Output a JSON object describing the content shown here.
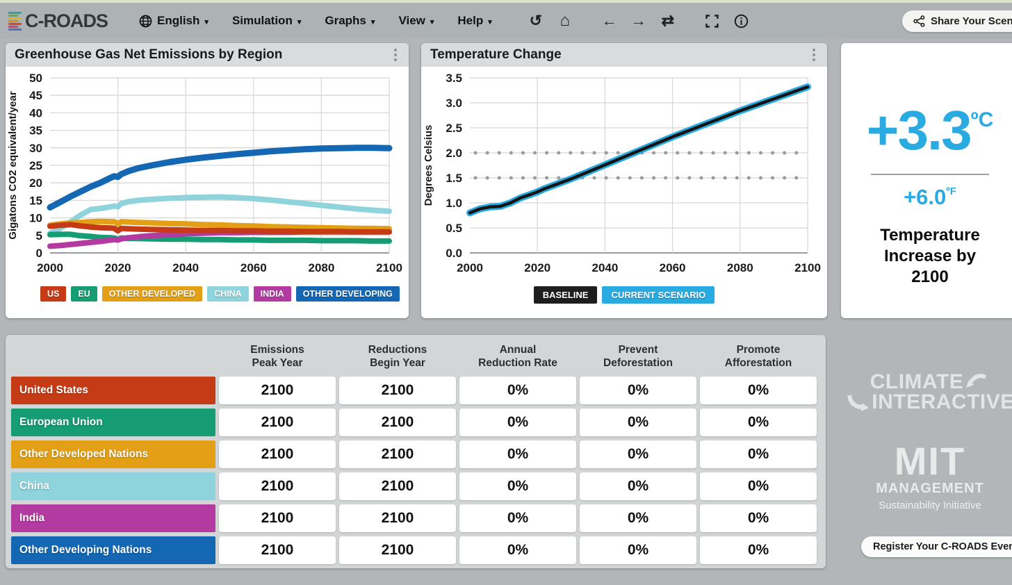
{
  "header": {
    "logo_text": "C-ROADS",
    "logo_stripe_colors": [
      "#2fa39b",
      "#6aab3e",
      "#d1b62a",
      "#e08a1e",
      "#d5472c",
      "#c8447e",
      "#5b6fb5"
    ],
    "menus": [
      {
        "id": "language",
        "label": "English",
        "icon": "globe-icon"
      },
      {
        "id": "simulation",
        "label": "Simulation"
      },
      {
        "id": "graphs",
        "label": "Graphs"
      },
      {
        "id": "view",
        "label": "View"
      },
      {
        "id": "help",
        "label": "Help"
      }
    ],
    "share_button_label": "Share Your Scenario"
  },
  "panels": {
    "emissions_title": "Greenhouse Gas Net Emissions by Region",
    "temperature_title": "Temperature Change"
  },
  "summary": {
    "celsius_value": "+3.3",
    "celsius_unit": "ºC",
    "fahrenheit_value": "+6.0",
    "fahrenheit_unit": "ºF",
    "caption": "Temperature Increase by 2100"
  },
  "branding": {
    "climate_interactive_line1": "CLIMATE",
    "climate_interactive_line2": "INTERACTIVE",
    "mit_line1": "MIT",
    "mit_line2": "MANAGEMENT",
    "mit_line3": "Sustainability Initiative",
    "register_button_label": "Register Your C-ROADS Event"
  },
  "colors": {
    "us": "#c43b16",
    "eu": "#179d74",
    "other_developed": "#e3a017",
    "china": "#8fd3dc",
    "india": "#b23aa0",
    "other_developing": "#1467b2",
    "current_scenario": "#29abe2",
    "baseline": "#141414"
  },
  "table": {
    "columns": [
      {
        "line1": "Emissions",
        "line2": "Peak Year"
      },
      {
        "line1": "Reductions",
        "line2": "Begin Year"
      },
      {
        "line1": "Annual",
        "line2": "Reduction Rate"
      },
      {
        "line1": "Prevent",
        "line2": "Deforestation"
      },
      {
        "line1": "Promote",
        "line2": "Afforestation"
      }
    ],
    "rows": [
      {
        "label": "United States",
        "color": "#c43b16",
        "values": [
          "2100",
          "2100",
          "0%",
          "0%",
          "0%"
        ]
      },
      {
        "label": "European Union",
        "color": "#179d74",
        "values": [
          "2100",
          "2100",
          "0%",
          "0%",
          "0%"
        ]
      },
      {
        "label": "Other Developed Nations",
        "color": "#e3a017",
        "values": [
          "2100",
          "2100",
          "0%",
          "0%",
          "0%"
        ]
      },
      {
        "label": "China",
        "color": "#8fd3dc",
        "values": [
          "2100",
          "2100",
          "0%",
          "0%",
          "0%"
        ]
      },
      {
        "label": "India",
        "color": "#b23aa0",
        "values": [
          "2100",
          "2100",
          "0%",
          "0%",
          "0%"
        ]
      },
      {
        "label": "Other Developing Nations",
        "color": "#1467b2",
        "values": [
          "2100",
          "2100",
          "0%",
          "0%",
          "0%"
        ]
      }
    ]
  },
  "chart_data": [
    {
      "type": "line",
      "title": "Greenhouse Gas Net Emissions by Region",
      "ylabel": "Gigatons CO2 equivalent/year",
      "ylim": [
        0,
        50
      ],
      "ytick": 5,
      "ydecimals": 0,
      "xlim": [
        2000,
        2100
      ],
      "xtick": 20,
      "grid": true,
      "legend_position": "bottom",
      "x": [
        2000,
        2003,
        2006,
        2009,
        2012,
        2015,
        2018,
        2019,
        2020,
        2021,
        2023,
        2026,
        2030,
        2035,
        2040,
        2045,
        2050,
        2055,
        2060,
        2065,
        2070,
        2075,
        2080,
        2085,
        2090,
        2095,
        2100
      ],
      "series": [
        {
          "name": "CHINA",
          "color": "#8fd3dc",
          "lw": 8,
          "values": [
            5.6,
            7.0,
            8.8,
            10.8,
            12.4,
            12.7,
            13.2,
            13.4,
            13.2,
            14.1,
            14.6,
            15.0,
            15.3,
            15.6,
            15.8,
            15.9,
            16.0,
            15.8,
            15.5,
            15.1,
            14.6,
            14.1,
            13.6,
            13.1,
            12.6,
            12.2,
            11.9
          ]
        },
        {
          "name": "EU",
          "color": "#179d74",
          "lw": 8,
          "values": [
            5.2,
            5.3,
            5.3,
            4.9,
            4.7,
            4.4,
            4.3,
            4.2,
            3.8,
            4.2,
            4.1,
            4.1,
            4.0,
            3.9,
            3.9,
            3.8,
            3.8,
            3.7,
            3.7,
            3.6,
            3.6,
            3.6,
            3.5,
            3.5,
            3.5,
            3.4,
            3.4
          ]
        },
        {
          "name": "INDIA",
          "color": "#b23aa0",
          "lw": 8,
          "values": [
            1.9,
            2.1,
            2.4,
            2.7,
            3.0,
            3.3,
            3.7,
            3.8,
            3.7,
            4.0,
            4.3,
            4.6,
            4.9,
            5.2,
            5.5,
            5.6,
            5.8,
            5.8,
            5.9,
            5.9,
            5.9,
            6.0,
            6.0,
            6.0,
            6.0,
            6.0,
            6.0
          ]
        },
        {
          "name": "OTHER DEVELOPED",
          "color": "#e3a017",
          "lw": 8,
          "values": [
            7.9,
            8.3,
            8.6,
            8.7,
            8.9,
            9.0,
            8.9,
            8.9,
            8.3,
            8.9,
            8.8,
            8.7,
            8.6,
            8.4,
            8.3,
            8.1,
            8.0,
            7.8,
            7.7,
            7.5,
            7.4,
            7.3,
            7.2,
            7.1,
            7.0,
            7.0,
            6.9
          ]
        },
        {
          "name": "US",
          "color": "#c43b16",
          "lw": 8,
          "values": [
            7.6,
            7.9,
            8.1,
            7.7,
            7.4,
            7.2,
            7.1,
            7.0,
            6.3,
            7.0,
            6.9,
            6.8,
            6.7,
            6.6,
            6.5,
            6.4,
            6.4,
            6.3,
            6.3,
            6.2,
            6.2,
            6.1,
            6.1,
            6.1,
            6.0,
            6.0,
            6.0
          ]
        },
        {
          "name": "OTHER DEVELOPING",
          "color": "#1467b2",
          "lw": 9,
          "values": [
            13.0,
            14.5,
            16.1,
            17.5,
            18.9,
            20.1,
            21.5,
            21.9,
            21.7,
            22.5,
            23.3,
            24.2,
            25.0,
            25.9,
            26.6,
            27.2,
            27.7,
            28.2,
            28.6,
            29.0,
            29.3,
            29.6,
            29.8,
            29.9,
            30.0,
            30.0,
            29.9
          ]
        }
      ],
      "legend": [
        {
          "label": "US",
          "color": "#c43b16"
        },
        {
          "label": "EU",
          "color": "#179d74"
        },
        {
          "label": "OTHER DEVELOPED",
          "color": "#e3a017"
        },
        {
          "label": "CHINA",
          "color": "#8fd3dc"
        },
        {
          "label": "INDIA",
          "color": "#b23aa0"
        },
        {
          "label": "OTHER DEVELOPING",
          "color": "#1467b2"
        }
      ]
    },
    {
      "type": "line",
      "title": "Temperature Change",
      "ylabel": "Degrees Celsius",
      "ylim": [
        0,
        3.5
      ],
      "ytick": 0.5,
      "ydecimals": 1,
      "xlim": [
        2000,
        2100
      ],
      "xtick": 20,
      "grid": true,
      "ref_lines": [
        1.5,
        2.0
      ],
      "legend_position": "bottom",
      "x": [
        2000,
        2003,
        2006,
        2009,
        2012,
        2015,
        2018,
        2020,
        2022,
        2026,
        2030,
        2035,
        2040,
        2045,
        2050,
        2055,
        2060,
        2065,
        2070,
        2075,
        2080,
        2085,
        2090,
        2095,
        2100
      ],
      "series": [
        {
          "name": "CURRENT SCENARIO",
          "color": "#29abe2",
          "lw": 10,
          "values": [
            0.8,
            0.88,
            0.92,
            0.93,
            1.0,
            1.1,
            1.17,
            1.22,
            1.28,
            1.38,
            1.48,
            1.62,
            1.76,
            1.9,
            2.04,
            2.18,
            2.32,
            2.45,
            2.58,
            2.71,
            2.84,
            2.96,
            3.08,
            3.2,
            3.32
          ]
        },
        {
          "name": "BASELINE",
          "color": "#141414",
          "lw": 4.5,
          "values": [
            0.8,
            0.88,
            0.92,
            0.93,
            1.0,
            1.1,
            1.17,
            1.22,
            1.28,
            1.38,
            1.48,
            1.62,
            1.76,
            1.9,
            2.04,
            2.18,
            2.32,
            2.45,
            2.58,
            2.71,
            2.84,
            2.96,
            3.08,
            3.2,
            3.32
          ]
        }
      ],
      "legend": [
        {
          "label": "BASELINE",
          "color": "#1e1e1e"
        },
        {
          "label": "CURRENT SCENARIO",
          "color": "#29abe2"
        }
      ]
    }
  ]
}
